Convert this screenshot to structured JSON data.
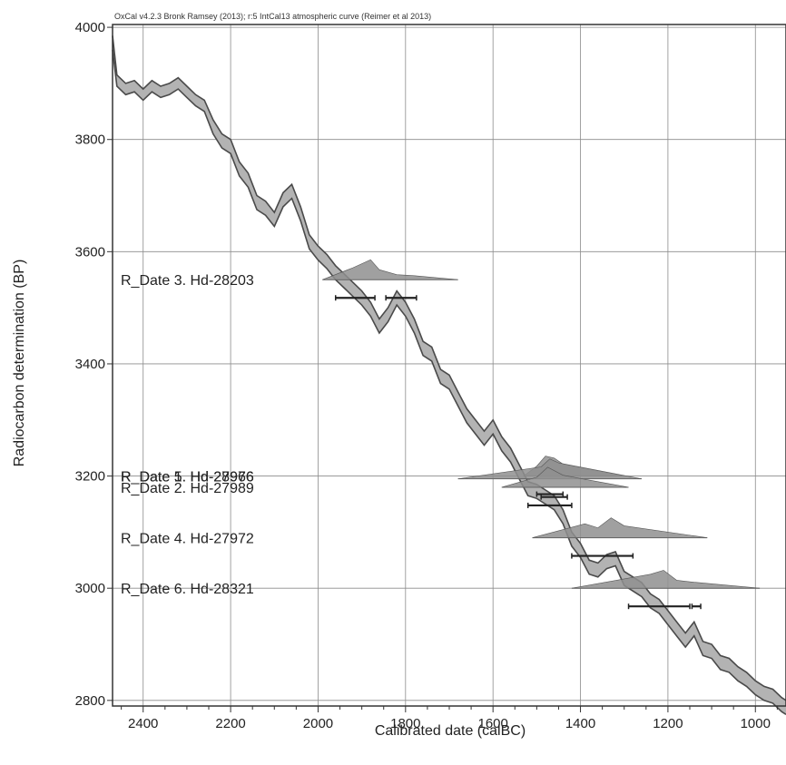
{
  "chart_data": {
    "type": "line",
    "title": "OxCal v4.2.3 Bronk Ramsey (2013); r:5 IntCal13 atmospheric curve (Reimer et al 2013)",
    "xlabel": "Calibrated date (calBC)",
    "ylabel": "Radiocarbon determination (BP)",
    "xlim": [
      2470,
      930
    ],
    "ylim": [
      2790,
      4005
    ],
    "x_ticks": [
      "2400",
      "2200",
      "2000",
      "1800",
      "1600",
      "1400",
      "1200",
      "1000"
    ],
    "y_ticks": [
      "4000",
      "3800",
      "3600",
      "3400",
      "3200",
      "3000",
      "2800"
    ],
    "grid": true,
    "curve": {
      "x": [
        2470,
        2460,
        2440,
        2420,
        2400,
        2380,
        2360,
        2340,
        2320,
        2300,
        2280,
        2260,
        2240,
        2220,
        2200,
        2180,
        2160,
        2140,
        2120,
        2100,
        2080,
        2060,
        2040,
        2020,
        2000,
        1980,
        1960,
        1940,
        1920,
        1900,
        1880,
        1860,
        1840,
        1820,
        1800,
        1780,
        1760,
        1740,
        1720,
        1700,
        1680,
        1660,
        1640,
        1620,
        1600,
        1580,
        1560,
        1540,
        1520,
        1500,
        1480,
        1460,
        1440,
        1420,
        1400,
        1380,
        1360,
        1340,
        1320,
        1300,
        1280,
        1260,
        1240,
        1220,
        1200,
        1180,
        1160,
        1140,
        1120,
        1100,
        1080,
        1060,
        1040,
        1020,
        1000,
        980,
        960,
        940,
        930
      ],
      "upper": [
        3985,
        3915,
        3900,
        3905,
        3890,
        3905,
        3895,
        3900,
        3910,
        3895,
        3880,
        3870,
        3835,
        3810,
        3800,
        3760,
        3740,
        3700,
        3690,
        3670,
        3705,
        3720,
        3680,
        3630,
        3610,
        3595,
        3575,
        3560,
        3545,
        3530,
        3510,
        3480,
        3500,
        3530,
        3510,
        3480,
        3440,
        3430,
        3390,
        3380,
        3350,
        3320,
        3300,
        3280,
        3300,
        3270,
        3250,
        3220,
        3190,
        3185,
        3175,
        3165,
        3140,
        3100,
        3080,
        3050,
        3045,
        3060,
        3065,
        3030,
        3020,
        3010,
        2990,
        2980,
        2960,
        2940,
        2920,
        2940,
        2905,
        2900,
        2880,
        2875,
        2860,
        2850,
        2835,
        2825,
        2820,
        2805,
        2800
      ],
      "lower": [
        3960,
        3895,
        3880,
        3885,
        3870,
        3885,
        3875,
        3880,
        3890,
        3875,
        3860,
        3850,
        3810,
        3785,
        3775,
        3735,
        3715,
        3675,
        3665,
        3645,
        3680,
        3695,
        3655,
        3605,
        3585,
        3570,
        3550,
        3535,
        3520,
        3505,
        3485,
        3455,
        3475,
        3505,
        3485,
        3455,
        3415,
        3405,
        3365,
        3355,
        3325,
        3295,
        3275,
        3255,
        3275,
        3245,
        3225,
        3195,
        3165,
        3160,
        3150,
        3140,
        3115,
        3075,
        3055,
        3025,
        3020,
        3035,
        3040,
        3005,
        2995,
        2985,
        2965,
        2955,
        2935,
        2915,
        2895,
        2915,
        2880,
        2875,
        2855,
        2850,
        2835,
        2825,
        2810,
        2800,
        2795,
        2780,
        2775
      ]
    },
    "samples": [
      {
        "label": "R_Date 3. Hd-28203",
        "bp": 3550,
        "label_bp": 3550,
        "pdf": [
          [
            1920,
            0.6
          ],
          [
            1880,
            1.0
          ],
          [
            1860,
            0.5
          ],
          [
            1820,
            0.25
          ],
          [
            1780,
            0.2
          ]
        ],
        "line": [
          1990,
          1680
        ],
        "ranges": [
          [
            1960,
            1870
          ],
          [
            1845,
            1775
          ]
        ]
      },
      {
        "label": "R_Date 5. Hd-28976",
        "bp": 3200,
        "label_bp": 3200,
        "pdf": [
          [
            1500,
            0.5
          ],
          [
            1480,
            1.0
          ],
          [
            1460,
            0.9
          ],
          [
            1440,
            0.6
          ]
        ],
        "line": [
          1530,
          1300
        ],
        "ranges": [
          [
            1500,
            1440
          ]
        ]
      },
      {
        "label": "R_Date 1. Hd-27966",
        "bp": 3195,
        "label_bp": 3200,
        "pdf": [
          [
            1490,
            0.6
          ],
          [
            1470,
            1.0
          ],
          [
            1450,
            0.8
          ]
        ],
        "line": [
          1680,
          1260
        ],
        "ranges": [
          [
            1490,
            1430
          ]
        ]
      },
      {
        "label": "R_Date 2. Hd-27989",
        "bp": 3180,
        "label_bp": 3180,
        "pdf": [
          [
            1500,
            0.5
          ],
          [
            1475,
            1.0
          ],
          [
            1440,
            0.6
          ]
        ],
        "line": [
          1580,
          1290
        ],
        "ranges": [
          [
            1520,
            1420
          ]
        ]
      },
      {
        "label": "R_Date 4. Hd-27972",
        "bp": 3090,
        "label_bp": 3090,
        "pdf": [
          [
            1390,
            0.7
          ],
          [
            1360,
            0.5
          ],
          [
            1330,
            1.0
          ],
          [
            1300,
            0.6
          ]
        ],
        "line": [
          1510,
          1110
        ],
        "ranges": [
          [
            1420,
            1280
          ]
        ]
      },
      {
        "label": "R_Date 6. Hd-28321",
        "bp": 3000,
        "label_bp": 3000,
        "pdf": [
          [
            1240,
            0.7
          ],
          [
            1210,
            0.9
          ],
          [
            1180,
            0.4
          ],
          [
            1140,
            0.3
          ]
        ],
        "line": [
          1420,
          990
        ],
        "ranges": [
          [
            1290,
            1150
          ],
          [
            1145,
            1125
          ]
        ]
      }
    ],
    "colors": {
      "curve_fill": "#b3b3b3",
      "curve_line": "#4a4a4a",
      "pdf_fill": "#8f8f8f",
      "grid": "#8c8c8c",
      "range": "#222222"
    }
  }
}
